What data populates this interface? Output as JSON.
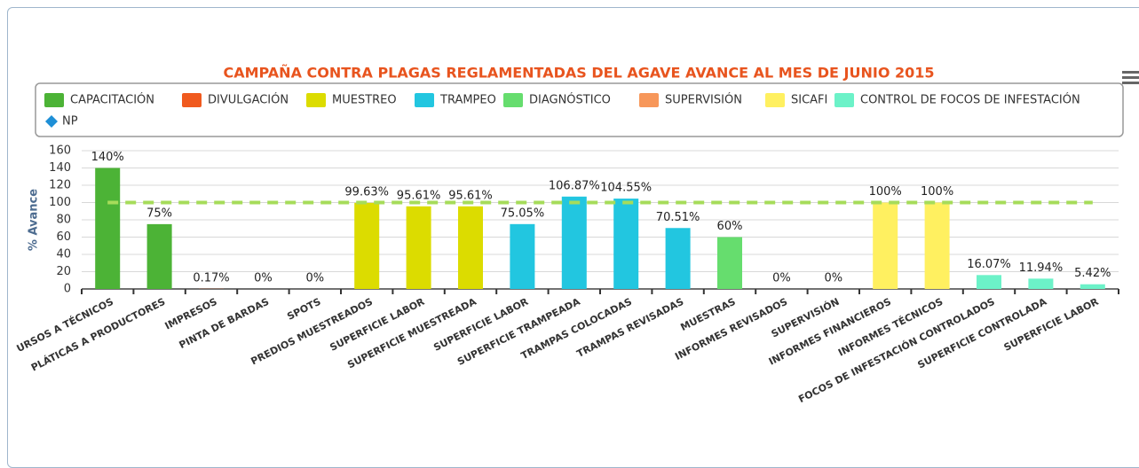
{
  "chart_data": {
    "type": "bar",
    "title": "CAMPAÑA CONTRA PLAGAS REGLAMENTADAS DEL AGAVE AVANCE AL MES DE JUNIO 2015",
    "y_axis_label": "% Avance",
    "categories": [
      "URSOS A TÉCNICOS",
      "PLÁTICAS A PRODUCTORES",
      "IMPRESOS",
      "PINTA DE BARDAS",
      "SPOTS",
      "PREDIOS MUESTREADOS",
      "SUPERFICIE LABOR",
      "SUPERFICIE MUESTREADA",
      "SUPERFICIE LABOR",
      "SUPERFICIE TRAMPEADA",
      "TRAMPAS COLOCADAS",
      "TRAMPAS REVISADAS",
      "MUESTRAS",
      "INFORMES REVISADOS",
      "SUPERVISIÓN",
      "INFORMES FINANCIEROS",
      "INFORMES TÉCNICOS",
      "FOCOS DE INFESTACIÓN CONTROLADOS",
      "SUPERFICIE CONTROLADA",
      "SUPERFICIE LABOR"
    ],
    "ylim": [
      0,
      160
    ],
    "yticks": [
      0,
      20,
      40,
      60,
      80,
      100,
      120,
      140,
      160
    ],
    "grid": true,
    "series": [
      {
        "name": "CAPACITACIÓN",
        "color": "#4cb336",
        "values": [
          140,
          75,
          null,
          null,
          null,
          null,
          null,
          null,
          null,
          null,
          null,
          null,
          null,
          null,
          null,
          null,
          null,
          null,
          null,
          null
        ],
        "value_labels": [
          "140%",
          "75%",
          null,
          null,
          null,
          null,
          null,
          null,
          null,
          null,
          null,
          null,
          null,
          null,
          null,
          null,
          null,
          null,
          null,
          null
        ]
      },
      {
        "name": "DIVULGACIÓN",
        "color": "#f05a1e",
        "values": [
          null,
          null,
          0.17,
          0,
          0,
          null,
          null,
          null,
          null,
          null,
          null,
          null,
          null,
          null,
          null,
          null,
          null,
          null,
          null,
          null
        ],
        "value_labels": [
          null,
          null,
          "0.17%",
          "0%",
          "0%",
          null,
          null,
          null,
          null,
          null,
          null,
          null,
          null,
          null,
          null,
          null,
          null,
          null,
          null,
          null
        ]
      },
      {
        "name": "MUESTREO",
        "color": "#dcdc00",
        "values": [
          null,
          null,
          null,
          null,
          null,
          99.63,
          95.61,
          95.61,
          null,
          null,
          null,
          null,
          null,
          null,
          null,
          null,
          null,
          null,
          null,
          null
        ],
        "value_labels": [
          null,
          null,
          null,
          null,
          null,
          "99.63%",
          "95.61%",
          "95.61%",
          null,
          null,
          null,
          null,
          null,
          null,
          null,
          null,
          null,
          null,
          null,
          null
        ]
      },
      {
        "name": "TRAMPEO",
        "color": "#22c6e0",
        "values": [
          null,
          null,
          null,
          null,
          null,
          null,
          null,
          null,
          75.05,
          106.87,
          104.55,
          70.51,
          null,
          null,
          null,
          null,
          null,
          null,
          null,
          null
        ],
        "value_labels": [
          null,
          null,
          null,
          null,
          null,
          null,
          null,
          null,
          "75.05%",
          "106.87%",
          "104.55%",
          "70.51%",
          null,
          null,
          null,
          null,
          null,
          null,
          null,
          null
        ]
      },
      {
        "name": "DIAGNÓSTICO",
        "color": "#66dd6e",
        "values": [
          null,
          null,
          null,
          null,
          null,
          null,
          null,
          null,
          null,
          null,
          null,
          null,
          60,
          null,
          null,
          null,
          null,
          null,
          null,
          null
        ],
        "value_labels": [
          null,
          null,
          null,
          null,
          null,
          null,
          null,
          null,
          null,
          null,
          null,
          null,
          "60%",
          null,
          null,
          null,
          null,
          null,
          null,
          null
        ]
      },
      {
        "name": "SUPERVISIÓN",
        "color": "#f7975a",
        "values": [
          null,
          null,
          null,
          null,
          null,
          null,
          null,
          null,
          null,
          null,
          null,
          null,
          null,
          0,
          0,
          null,
          null,
          null,
          null,
          null
        ],
        "value_labels": [
          null,
          null,
          null,
          null,
          null,
          null,
          null,
          null,
          null,
          null,
          null,
          null,
          null,
          "0%",
          "0%",
          null,
          null,
          null,
          null,
          null
        ]
      },
      {
        "name": "SICAFI",
        "color": "#fff060",
        "values": [
          null,
          null,
          null,
          null,
          null,
          null,
          null,
          null,
          null,
          null,
          null,
          null,
          null,
          null,
          null,
          100,
          100,
          null,
          null,
          null
        ],
        "value_labels": [
          null,
          null,
          null,
          null,
          null,
          null,
          null,
          null,
          null,
          null,
          null,
          null,
          null,
          null,
          null,
          "100%",
          "100%",
          null,
          null,
          null
        ]
      },
      {
        "name": "CONTROL DE FOCOS DE INFESTACIÓN",
        "color": "#6cf2c8",
        "values": [
          null,
          null,
          null,
          null,
          null,
          null,
          null,
          null,
          null,
          null,
          null,
          null,
          null,
          null,
          null,
          null,
          null,
          16.07,
          11.94,
          5.42
        ],
        "value_labels": [
          null,
          null,
          null,
          null,
          null,
          null,
          null,
          null,
          null,
          null,
          null,
          null,
          null,
          null,
          null,
          null,
          null,
          "16.07%",
          "11.94%",
          "5.42%"
        ]
      },
      {
        "name": "NP",
        "type": "line",
        "color": "#1e8fd6",
        "line_color": "#a6dc5a",
        "dashed": true,
        "values": [
          100,
          100,
          100,
          100,
          100,
          100,
          100,
          100,
          100,
          100,
          100,
          100,
          100,
          100,
          100,
          100,
          100,
          100,
          100,
          100
        ]
      }
    ]
  }
}
